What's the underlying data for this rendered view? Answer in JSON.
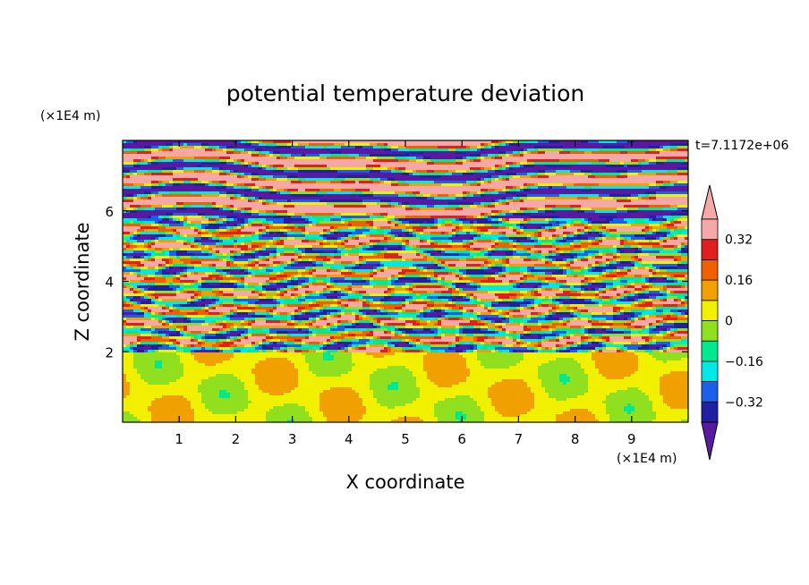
{
  "chart_data": {
    "type": "heatmap",
    "title": "potential temperature deviation",
    "xlabel": "X coordinate",
    "ylabel": "Z coordinate",
    "x_unit": "(×1E4 m)",
    "y_unit": "(×1E4 m)",
    "time_label": "t=7.1172e+06",
    "xlim": [
      0,
      10
    ],
    "ylim": [
      0,
      8
    ],
    "x_ticks": [
      "1",
      "2",
      "3",
      "4",
      "5",
      "6",
      "7",
      "8",
      "9"
    ],
    "y_ticks": [
      "2",
      "4",
      "6"
    ],
    "colorbar": {
      "levels": [
        -0.4,
        -0.32,
        -0.24,
        -0.16,
        -0.08,
        0,
        0.08,
        0.16,
        0.24,
        0.32,
        0.4
      ],
      "labels": [
        "0.32",
        "0.16",
        "0",
        "−0.16",
        "−0.32"
      ],
      "label_values": [
        0.32,
        0.16,
        0,
        -0.16,
        -0.32
      ],
      "colors": [
        "#5a1aa0",
        "#2020a0",
        "#1a60e8",
        "#00e8e8",
        "#00e890",
        "#90e020",
        "#f0f000",
        "#f0a000",
        "#f06000",
        "#e02020",
        "#f4a8a8"
      ],
      "extend": "both"
    },
    "regions": {
      "upper_layer_z": [
        5.8,
        8
      ],
      "middle_layer_z": [
        2,
        5.8
      ],
      "lower_layer_z": [
        0,
        2
      ]
    }
  }
}
